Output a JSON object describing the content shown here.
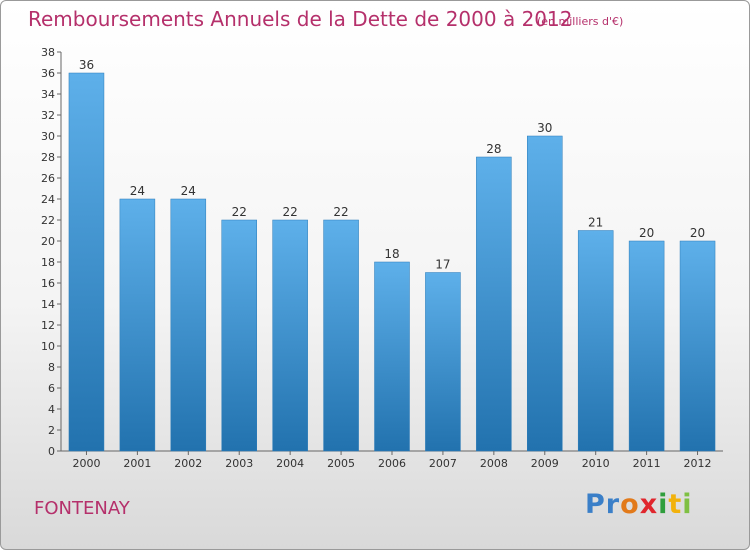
{
  "title": "Remboursements Annuels de la Dette de 2000 à 2012",
  "unit_note": "(en milliers d'€)",
  "commune": "FONTENAY",
  "logo": {
    "text": "Proxiti",
    "letters": [
      {
        "ch": "P",
        "color": "#3a7fc8"
      },
      {
        "ch": "r",
        "color": "#3a7fc8"
      },
      {
        "ch": "o",
        "color": "#e27a1a"
      },
      {
        "ch": "x",
        "color": "#e0262d"
      },
      {
        "ch": "i",
        "color": "#2f9e3c"
      },
      {
        "ch": "t",
        "color": "#f2b20c"
      },
      {
        "ch": "i",
        "color": "#7fc043"
      }
    ]
  },
  "colors": {
    "bar_light": "#5eb0ea",
    "bar_dark": "#2272ae",
    "title": "#b5306b"
  },
  "chart_data": {
    "type": "bar",
    "categories": [
      "2000",
      "2001",
      "2002",
      "2003",
      "2004",
      "2005",
      "2006",
      "2007",
      "2008",
      "2009",
      "2010",
      "2011",
      "2012"
    ],
    "values": [
      36,
      24,
      24,
      22,
      22,
      22,
      18,
      17,
      28,
      30,
      21,
      20,
      20
    ],
    "ylim": [
      0,
      38
    ],
    "yticks": [
      0,
      2,
      4,
      6,
      8,
      10,
      12,
      14,
      16,
      18,
      20,
      22,
      24,
      26,
      28,
      30,
      32,
      34,
      36,
      38
    ],
    "grid": false,
    "xlabel": "",
    "ylabel": ""
  }
}
